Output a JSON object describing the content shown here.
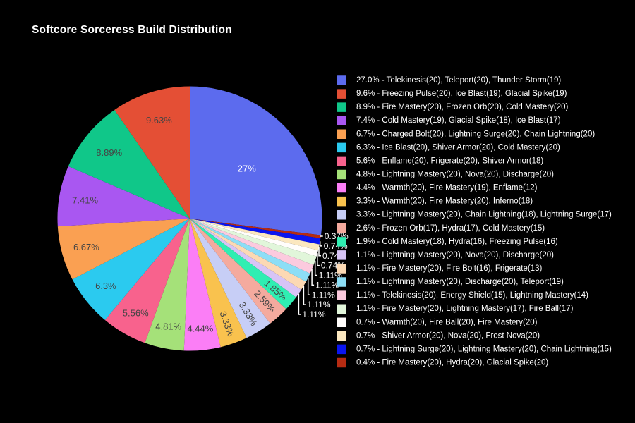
{
  "chart_data": {
    "type": "pie",
    "title": "Softcore Sorceress Build Distribution",
    "legend_position": "right",
    "background_color": "#000000",
    "inside_label_color": "#444444",
    "outside_label_color": "#ffffff",
    "leader_line_color": "#ffffff",
    "legend_text_color": "#ffffff",
    "slices": [
      {
        "legend_label": "27.0% - Telekinesis(20), Teleport(20), Thunder Storm(19)",
        "pie_label": "27%",
        "value": 27.0,
        "color": "#5c6bee",
        "text_color": "#ffffff"
      },
      {
        "legend_label": "9.6% - Freezing Pulse(20), Ice Blast(19), Glacial Spike(19)",
        "pie_label": "9.63%",
        "value": 9.63,
        "color": "#e44f35",
        "text_color": "#444444"
      },
      {
        "legend_label": "8.9% - Fire Mastery(20), Frozen Orb(20), Cold Mastery(20)",
        "pie_label": "8.89%",
        "value": 8.89,
        "color": "#10c789",
        "text_color": "#444444"
      },
      {
        "legend_label": "7.4% - Cold Mastery(19), Glacial Spike(18), Ice Blast(17)",
        "pie_label": "7.41%",
        "value": 7.41,
        "color": "#a957f1",
        "text_color": "#444444"
      },
      {
        "legend_label": "6.7% - Charged Bolt(20), Lightning Surge(20), Chain Lightning(20)",
        "pie_label": "6.67%",
        "value": 6.67,
        "color": "#faa052",
        "text_color": "#444444"
      },
      {
        "legend_label": "6.3% - Ice Blast(20), Shiver Armor(20), Cold Mastery(20)",
        "pie_label": "6.3%",
        "value": 6.3,
        "color": "#2bcaef",
        "text_color": "#444444"
      },
      {
        "legend_label": "5.6% - Enflame(20), Frigerate(20), Shiver Armor(18)",
        "pie_label": "5.56%",
        "value": 5.56,
        "color": "#f8628d",
        "text_color": "#444444"
      },
      {
        "legend_label": "4.8% - Lightning Mastery(20), Nova(20), Discharge(20)",
        "pie_label": "4.81%",
        "value": 4.81,
        "color": "#a5e179",
        "text_color": "#444444"
      },
      {
        "legend_label": "4.4% - Warmth(20), Fire Mastery(19), Enflame(12)",
        "pie_label": "4.44%",
        "value": 4.44,
        "color": "#fb7ef6",
        "text_color": "#444444"
      },
      {
        "legend_label": "3.3% - Warmth(20), Fire Mastery(20), Inferno(18)",
        "pie_label": "3.33%",
        "value": 3.33,
        "color": "#f9c24e",
        "text_color": "#444444"
      },
      {
        "legend_label": "3.3% - Lightning Mastery(20), Chain Lightning(18), Lightning Surge(17)",
        "pie_label": "3.33%",
        "value": 3.33,
        "color": "#c7cef6",
        "text_color": "#444444"
      },
      {
        "legend_label": "2.6% - Frozen Orb(17), Hydra(17), Cold Mastery(15)",
        "pie_label": "2.59%",
        "value": 2.59,
        "color": "#f4aa9e",
        "text_color": "#444444"
      },
      {
        "legend_label": "1.9% - Cold Mastery(18), Hydra(16), Freezing Pulse(16)",
        "pie_label": "1.85%",
        "value": 1.85,
        "color": "#2feeb2",
        "text_color": "#444444"
      },
      {
        "legend_label": "1.1% - Lightning Mastery(20), Nova(20), Discharge(20)",
        "pie_label": "1.11%",
        "value": 1.11,
        "color": "#d7c4f6",
        "text_color": "#ffffff"
      },
      {
        "legend_label": "1.1% - Fire Mastery(20), Fire Bolt(16), Frigerate(13)",
        "pie_label": "1.11%",
        "value": 1.11,
        "color": "#fcd9b4",
        "text_color": "#ffffff"
      },
      {
        "legend_label": "1.1% - Lightning Mastery(20), Discharge(20), Teleport(19)",
        "pie_label": "1.11%",
        "value": 1.11,
        "color": "#8cdef6",
        "text_color": "#ffffff"
      },
      {
        "legend_label": "1.1% - Telekinesis(20), Energy Shield(15), Lightning Mastery(14)",
        "pie_label": "1.11%",
        "value": 1.11,
        "color": "#fccade",
        "text_color": "#ffffff"
      },
      {
        "legend_label": "1.1% - Fire Mastery(20), Lightning Mastery(17), Fire Ball(17)",
        "pie_label": "1.11%",
        "value": 1.11,
        "color": "#e1f6da",
        "text_color": "#ffffff"
      },
      {
        "legend_label": "0.7% - Warmth(20), Fire Ball(20), Fire Mastery(20)",
        "pie_label": "0.74%",
        "value": 0.74,
        "color": "#fffdfb",
        "text_color": "#ffffff"
      },
      {
        "legend_label": "0.7% - Shiver Armor(20), Nova(20), Frost Nova(20)",
        "pie_label": "0.74%",
        "value": 0.74,
        "color": "#fbe7bf",
        "text_color": "#ffffff"
      },
      {
        "legend_label": "0.7% - Lightning Surge(20), Lightning Mastery(20), Chain Lightning(15)",
        "pie_label": "0.74%",
        "value": 0.74,
        "color": "#0a15f0",
        "text_color": "#ffffff"
      },
      {
        "legend_label": "0.4% - Fire Mastery(20), Hydra(20), Glacial Spike(20)",
        "pie_label": "0.37%",
        "value": 0.37,
        "color": "#b62b12",
        "text_color": "#ffffff"
      }
    ]
  }
}
